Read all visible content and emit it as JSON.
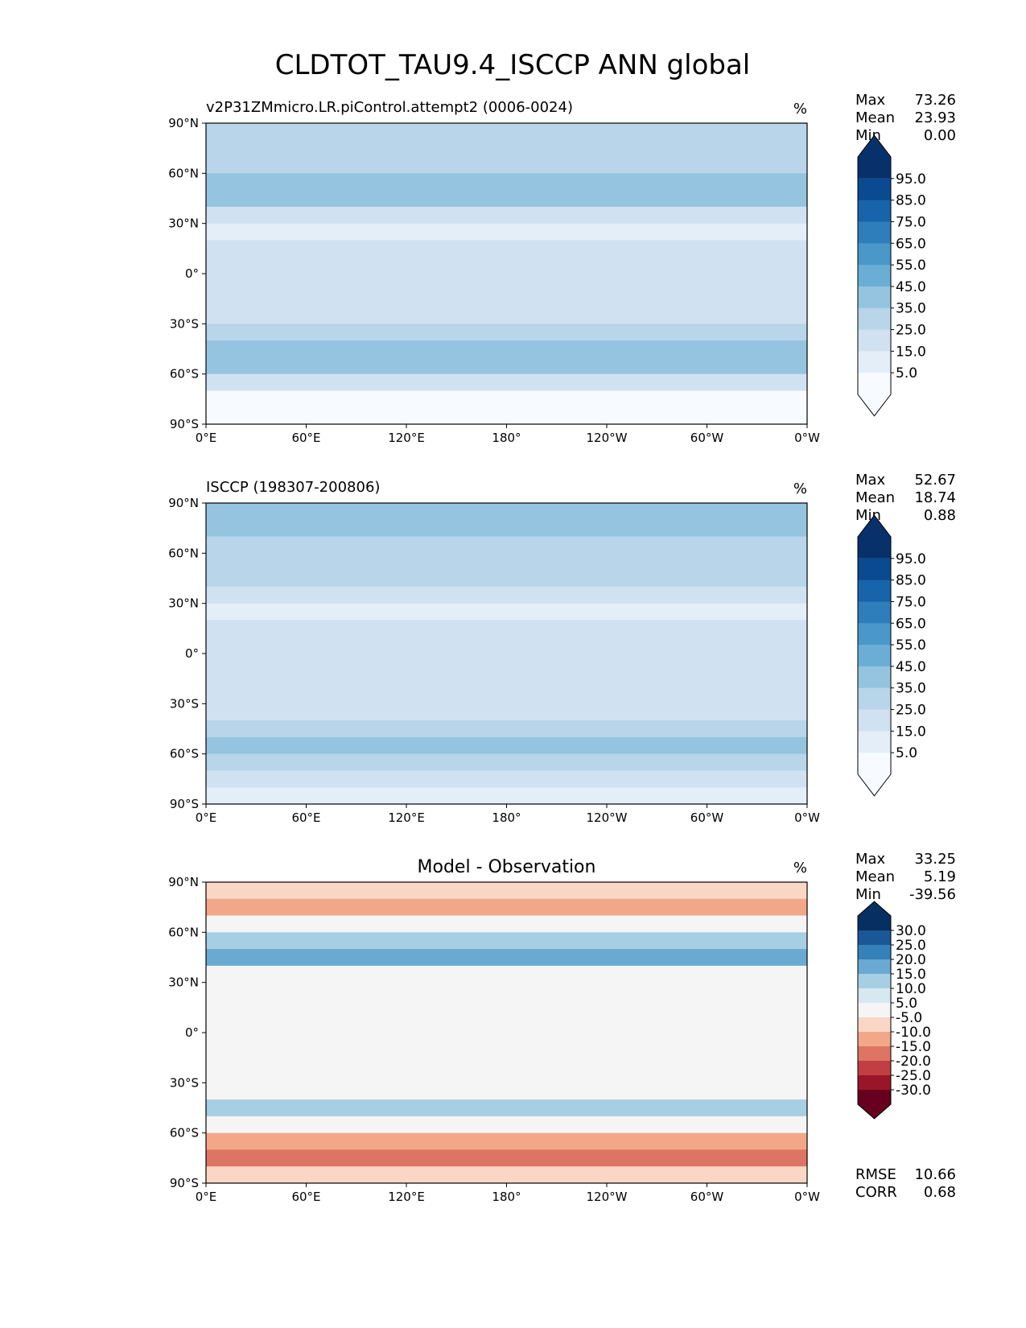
{
  "figure_title": "CLDTOT_TAU9.4_ISCCP ANN global",
  "chart_data": [
    {
      "type": "heatmap",
      "title": "v2P31ZMmicro.LR.piControl.attempt2 (0006-0024)",
      "units": "%",
      "xticks": [
        "0°E",
        "60°E",
        "120°E",
        "180°",
        "120°W",
        "60°W",
        "0°W"
      ],
      "yticks": [
        "90°N",
        "60°N",
        "30°N",
        "0°",
        "30°S",
        "60°S",
        "90°S"
      ],
      "xlim": [
        0,
        360
      ],
      "ylim": [
        -90,
        90
      ],
      "stats": [
        {
          "label": "Max",
          "value": "73.26"
        },
        {
          "label": "Mean",
          "value": "23.93"
        },
        {
          "label": "Min",
          "value": "0.00"
        }
      ],
      "colorbar": {
        "levels": [
          "95.0",
          "85.0",
          "75.0",
          "65.0",
          "55.0",
          "45.0",
          "35.0",
          "25.0",
          "15.0",
          "5.0"
        ],
        "colors": [
          "#08306b",
          "#0a4a90",
          "#1764ab",
          "#2e7ebc",
          "#4a98c9",
          "#6aaed6",
          "#94c4df",
          "#b8d5ea",
          "#d0e1f2",
          "#e3eef9",
          "#f7fbff"
        ],
        "extend": "both"
      },
      "zonal_profile": [
        {
          "lat": 85,
          "value": 30
        },
        {
          "lat": 75,
          "value": 28
        },
        {
          "lat": 65,
          "value": 27
        },
        {
          "lat": 55,
          "value": 38
        },
        {
          "lat": 45,
          "value": 42
        },
        {
          "lat": 35,
          "value": 22
        },
        {
          "lat": 25,
          "value": 12
        },
        {
          "lat": 15,
          "value": 15
        },
        {
          "lat": 5,
          "value": 22
        },
        {
          "lat": -5,
          "value": 20
        },
        {
          "lat": -15,
          "value": 16
        },
        {
          "lat": -25,
          "value": 16
        },
        {
          "lat": -35,
          "value": 25
        },
        {
          "lat": -45,
          "value": 42
        },
        {
          "lat": -55,
          "value": 40
        },
        {
          "lat": -65,
          "value": 18
        },
        {
          "lat": -75,
          "value": 3
        },
        {
          "lat": -85,
          "value": 2
        }
      ]
    },
    {
      "type": "heatmap",
      "title": "ISCCP (198307-200806)",
      "units": "%",
      "xticks": [
        "0°E",
        "60°E",
        "120°E",
        "180°",
        "120°W",
        "60°W",
        "0°W"
      ],
      "yticks": [
        "90°N",
        "60°N",
        "30°N",
        "0°",
        "30°S",
        "60°S",
        "90°S"
      ],
      "xlim": [
        0,
        360
      ],
      "ylim": [
        -90,
        90
      ],
      "stats": [
        {
          "label": "Max",
          "value": "52.67"
        },
        {
          "label": "Mean",
          "value": "18.74"
        },
        {
          "label": "Min",
          "value": "0.88"
        }
      ],
      "colorbar": {
        "levels": [
          "95.0",
          "85.0",
          "75.0",
          "65.0",
          "55.0",
          "45.0",
          "35.0",
          "25.0",
          "15.0",
          "5.0"
        ],
        "colors": [
          "#08306b",
          "#0a4a90",
          "#1764ab",
          "#2e7ebc",
          "#4a98c9",
          "#6aaed6",
          "#94c4df",
          "#b8d5ea",
          "#d0e1f2",
          "#e3eef9",
          "#f7fbff"
        ],
        "extend": "both"
      },
      "zonal_profile": [
        {
          "lat": 85,
          "value": 35
        },
        {
          "lat": 75,
          "value": 40
        },
        {
          "lat": 65,
          "value": 32
        },
        {
          "lat": 55,
          "value": 28
        },
        {
          "lat": 45,
          "value": 26
        },
        {
          "lat": 35,
          "value": 18
        },
        {
          "lat": 25,
          "value": 14
        },
        {
          "lat": 15,
          "value": 16
        },
        {
          "lat": 5,
          "value": 18
        },
        {
          "lat": -5,
          "value": 17
        },
        {
          "lat": -15,
          "value": 15
        },
        {
          "lat": -25,
          "value": 16
        },
        {
          "lat": -35,
          "value": 22
        },
        {
          "lat": -45,
          "value": 30
        },
        {
          "lat": -55,
          "value": 36
        },
        {
          "lat": -65,
          "value": 30
        },
        {
          "lat": -75,
          "value": 20
        },
        {
          "lat": -85,
          "value": 12
        }
      ]
    },
    {
      "type": "heatmap",
      "title": "Model - Observation",
      "units": "%",
      "xticks": [
        "0°E",
        "60°E",
        "120°E",
        "180°",
        "120°W",
        "60°W",
        "0°W"
      ],
      "yticks": [
        "90°N",
        "60°N",
        "30°N",
        "0°",
        "30°S",
        "60°S",
        "90°S"
      ],
      "xlim": [
        0,
        360
      ],
      "ylim": [
        -90,
        90
      ],
      "stats": [
        {
          "label": "Max",
          "value": "33.25"
        },
        {
          "label": "Mean",
          "value": "5.19"
        },
        {
          "label": "Min",
          "value": "-39.56"
        }
      ],
      "colorbar": {
        "levels": [
          "30.0",
          "25.0",
          "20.0",
          "15.0",
          "10.0",
          "5.0",
          "-5.0",
          "-10.0",
          "-15.0",
          "-20.0",
          "-25.0",
          "-30.0"
        ],
        "colors": [
          "#053061",
          "#1a5796",
          "#3581ba",
          "#6aa9d1",
          "#a7cfe4",
          "#d7e8f1",
          "#f5f5f5",
          "#fad7c4",
          "#f2a888",
          "#de7464",
          "#c13e42",
          "#981628",
          "#67001f"
        ],
        "extend": "both"
      },
      "zonal_profile": [
        {
          "lat": 85,
          "value": -8
        },
        {
          "lat": 75,
          "value": -12
        },
        {
          "lat": 65,
          "value": -4
        },
        {
          "lat": 55,
          "value": 10
        },
        {
          "lat": 45,
          "value": 16
        },
        {
          "lat": 35,
          "value": 4
        },
        {
          "lat": 25,
          "value": -2
        },
        {
          "lat": 15,
          "value": 0
        },
        {
          "lat": 5,
          "value": 4
        },
        {
          "lat": -5,
          "value": 3
        },
        {
          "lat": -15,
          "value": 1
        },
        {
          "lat": -25,
          "value": 0
        },
        {
          "lat": -35,
          "value": 3
        },
        {
          "lat": -45,
          "value": 12
        },
        {
          "lat": -55,
          "value": 4
        },
        {
          "lat": -65,
          "value": -12
        },
        {
          "lat": -75,
          "value": -17
        },
        {
          "lat": -85,
          "value": -10
        }
      ],
      "error_stats": [
        {
          "label": "RMSE",
          "value": "10.66"
        },
        {
          "label": "CORR",
          "value": "0.68"
        }
      ]
    }
  ]
}
